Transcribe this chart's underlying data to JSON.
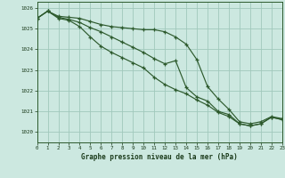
{
  "background_color": "#cce8e0",
  "grid_color": "#a0c8bc",
  "line_color": "#2d5a2d",
  "title": "Graphe pression niveau de la mer (hPa)",
  "xlim": [
    0,
    23
  ],
  "ylim": [
    1019.5,
    1026.3
  ],
  "yticks": [
    1020,
    1021,
    1022,
    1023,
    1024,
    1025,
    1026
  ],
  "xticks": [
    0,
    1,
    2,
    3,
    4,
    5,
    6,
    7,
    8,
    9,
    10,
    11,
    12,
    13,
    14,
    15,
    16,
    17,
    18,
    19,
    20,
    21,
    22,
    23
  ],
  "hours": [
    0,
    1,
    2,
    3,
    4,
    5,
    6,
    7,
    8,
    9,
    10,
    11,
    12,
    13,
    14,
    15,
    16,
    17,
    18,
    19,
    20,
    21,
    22,
    23
  ],
  "line1": [
    1025.5,
    1025.85,
    1025.6,
    1025.55,
    1025.5,
    1025.35,
    1025.2,
    1025.1,
    1025.05,
    1025.0,
    1024.95,
    1024.95,
    1024.85,
    1024.6,
    1024.25,
    1023.5,
    1022.2,
    1021.6,
    1021.1,
    1020.5,
    1020.4,
    1020.5,
    1020.75,
    1020.65
  ],
  "line2": [
    1025.5,
    1025.85,
    1025.55,
    1025.45,
    1025.3,
    1025.05,
    1024.85,
    1024.6,
    1024.35,
    1024.1,
    1023.85,
    1023.55,
    1023.3,
    1023.45,
    1022.15,
    1021.7,
    1021.5,
    1021.0,
    1020.85,
    1020.4,
    1020.3,
    1020.4,
    1020.72,
    1020.6
  ],
  "line3": [
    1025.5,
    1025.85,
    1025.5,
    1025.4,
    1025.1,
    1024.6,
    1024.15,
    1023.85,
    1023.6,
    1023.35,
    1023.1,
    1022.65,
    1022.3,
    1022.05,
    1021.85,
    1021.55,
    1021.3,
    1020.95,
    1020.75,
    1020.4,
    1020.3,
    1020.4,
    1020.72,
    1020.6
  ]
}
